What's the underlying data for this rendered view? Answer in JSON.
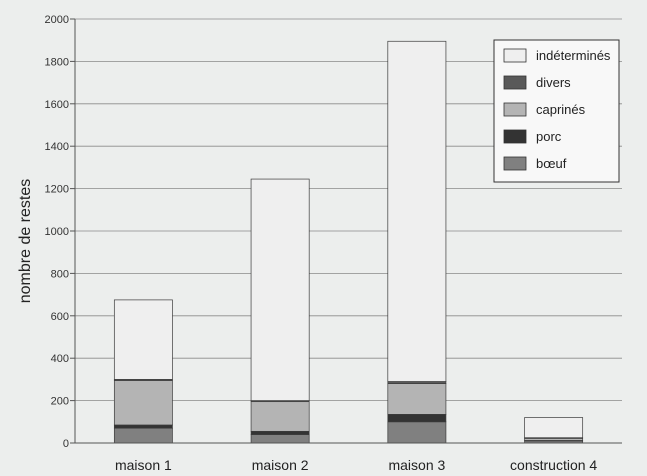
{
  "chart_data": {
    "type": "bar",
    "stacked": true,
    "title": "",
    "xlabel": "",
    "ylabel": "nombre de restes",
    "ylim": [
      0,
      2000
    ],
    "yticks": [
      0,
      200,
      400,
      600,
      800,
      1000,
      1200,
      1400,
      1600,
      1800,
      2000
    ],
    "grid": true,
    "legend_position": "top-right",
    "categories": [
      "maison 1",
      "maison 2",
      "maison 3",
      "construction 4"
    ],
    "series": [
      {
        "name": "bœuf",
        "color": "#808080",
        "values": [
          70,
          40,
          100,
          10
        ]
      },
      {
        "name": "porc",
        "color": "#333333",
        "values": [
          15,
          15,
          35,
          2
        ]
      },
      {
        "name": "caprinés",
        "color": "#b4b4b4",
        "values": [
          210,
          140,
          145,
          10
        ]
      },
      {
        "name": "divers",
        "color": "#595959",
        "values": [
          5,
          5,
          10,
          3
        ]
      },
      {
        "name": "indéterminés",
        "color": "#efefef",
        "values": [
          375,
          1045,
          1605,
          95
        ]
      }
    ],
    "legend_order": [
      "indéterminés",
      "divers",
      "caprinés",
      "porc",
      "bœuf"
    ]
  }
}
